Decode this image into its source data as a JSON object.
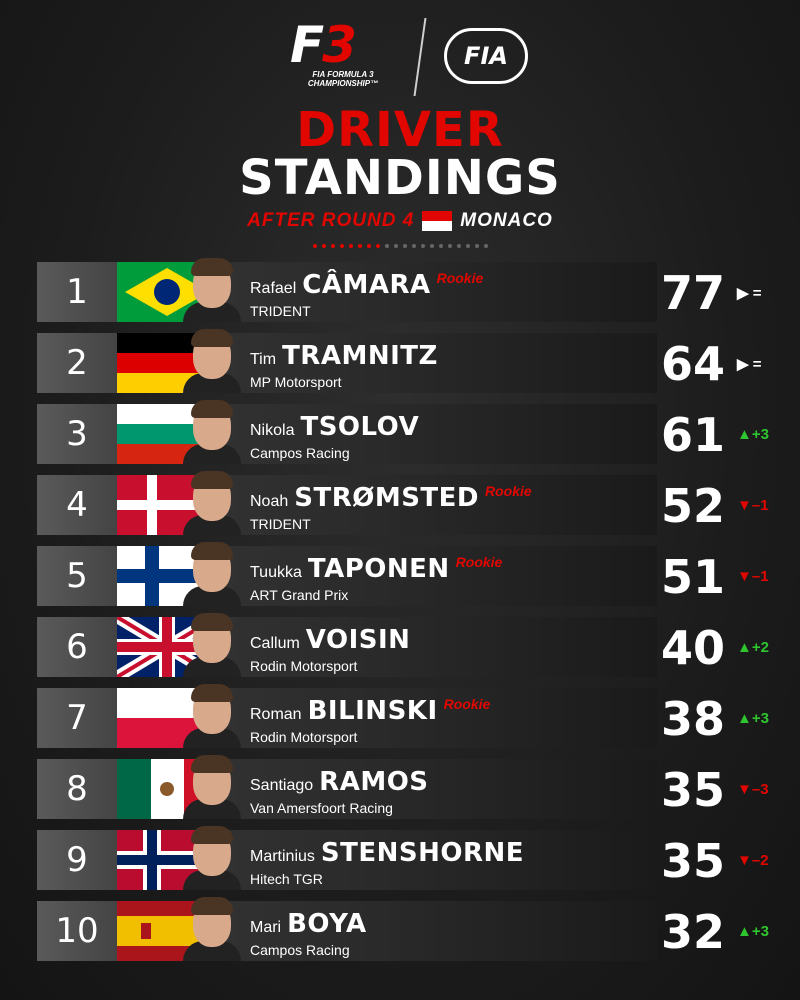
{
  "header": {
    "series_logo_mark_f": "F",
    "series_logo_mark_3": "3",
    "series_logo_sub": "FIA FORMULA 3 CHAMPIONSHIP™",
    "fia_logo": "FIA",
    "title_line1": "DRIVER",
    "title_line2": "STANDINGS",
    "round": "AFTER ROUND 4",
    "location": "MONACO"
  },
  "colors": {
    "accent": "#e10600",
    "up": "#2ec52e",
    "down": "#e10600",
    "background": "#1c1c1c"
  },
  "progress": {
    "rounds_completed": 4
  },
  "standings": [
    {
      "pos": "1",
      "first": "Rafael",
      "last": "CÂMARA",
      "rookie": "Rookie",
      "team": "TRIDENT",
      "points": "77",
      "change": "▶ =",
      "dir": "same",
      "flag": "brazil"
    },
    {
      "pos": "2",
      "first": "Tim",
      "last": "TRAMNITZ",
      "rookie": "",
      "team": "MP Motorsport",
      "points": "64",
      "change": "▶ =",
      "dir": "same",
      "flag": "germany"
    },
    {
      "pos": "3",
      "first": "Nikola",
      "last": "TSOLOV",
      "rookie": "",
      "team": "Campos Racing",
      "points": "61",
      "change": "▲+3",
      "dir": "up",
      "flag": "bulgaria"
    },
    {
      "pos": "4",
      "first": "Noah",
      "last": "STRØMSTED",
      "rookie": "Rookie",
      "team": "TRIDENT",
      "points": "52",
      "change": "▼–1",
      "dir": "down",
      "flag": "denmark"
    },
    {
      "pos": "5",
      "first": "Tuukka",
      "last": "TAPONEN",
      "rookie": "Rookie",
      "team": "ART Grand Prix",
      "points": "51",
      "change": "▼–1",
      "dir": "down",
      "flag": "finland"
    },
    {
      "pos": "6",
      "first": "Callum",
      "last": "VOISIN",
      "rookie": "",
      "team": "Rodin Motorsport",
      "points": "40",
      "change": "▲+2",
      "dir": "up",
      "flag": "uk"
    },
    {
      "pos": "7",
      "first": "Roman",
      "last": "BILINSKI",
      "rookie": "Rookie",
      "team": "Rodin Motorsport",
      "points": "38",
      "change": "▲+3",
      "dir": "up",
      "flag": "poland"
    },
    {
      "pos": "8",
      "first": "Santiago",
      "last": "RAMOS",
      "rookie": "",
      "team": "Van Amersfoort Racing",
      "points": "35",
      "change": "▼–3",
      "dir": "down",
      "flag": "mexico"
    },
    {
      "pos": "9",
      "first": "Martinius",
      "last": "STENSHORNE",
      "rookie": "",
      "team": "Hitech TGR",
      "points": "35",
      "change": "▼–2",
      "dir": "down",
      "flag": "norway"
    },
    {
      "pos": "10",
      "first": "Mari",
      "last": "BOYA",
      "rookie": "",
      "team": "Campos Racing",
      "points": "32",
      "change": "▲+3",
      "dir": "up",
      "flag": "spain"
    }
  ]
}
